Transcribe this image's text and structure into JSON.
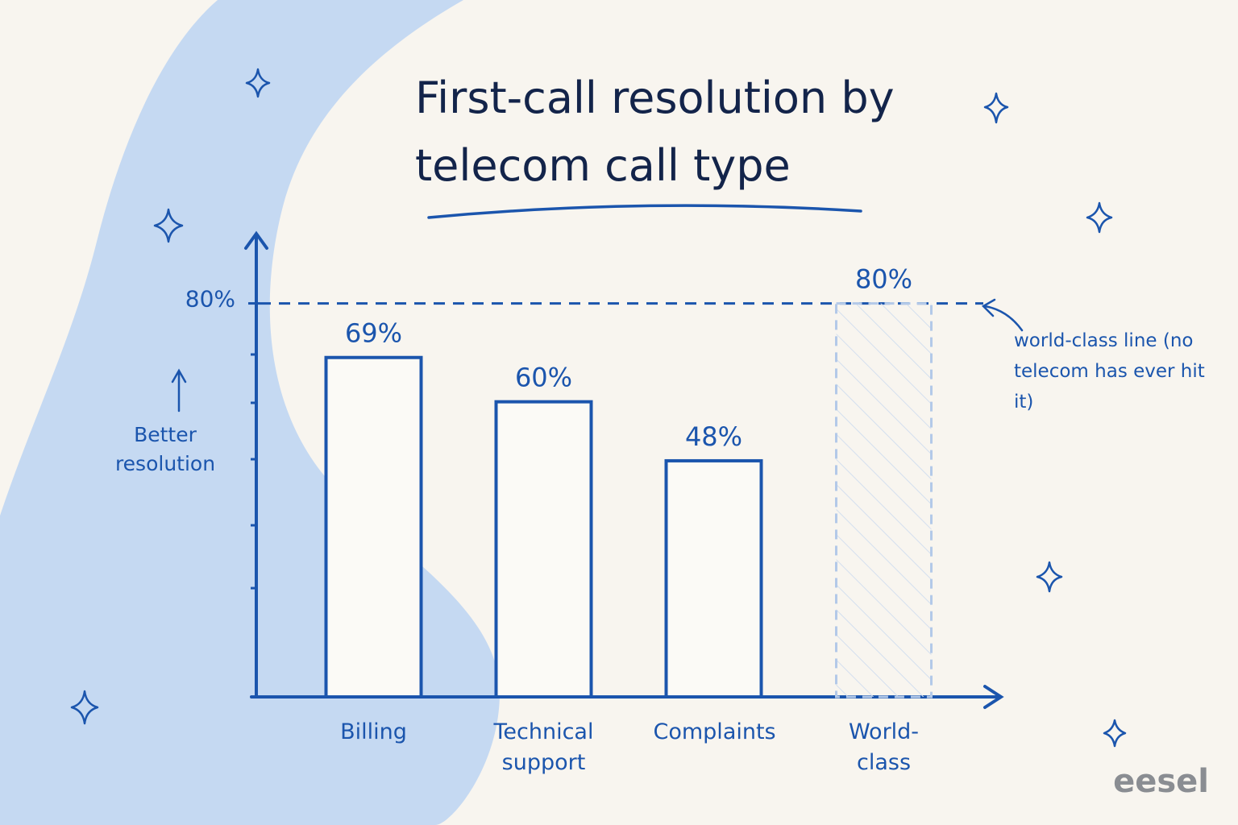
{
  "chart_data": {
    "type": "bar",
    "title": "First-call resolution by telecom call type",
    "categories": [
      "Billing",
      "Technical support",
      "Complaints",
      "World-class"
    ],
    "values": [
      69,
      60,
      48,
      80
    ],
    "value_labels": [
      "69%",
      "60%",
      "48%",
      "80%"
    ],
    "colors": [
      "#1b55ad",
      "#1b55ad",
      "#1b55ad",
      "#b3c9e8"
    ],
    "dashed": [
      false,
      false,
      false,
      true
    ],
    "ylim": [
      0,
      95
    ],
    "yticks": [
      {
        "value": 80,
        "label": "80%"
      }
    ],
    "y_axis_label": "Better resolution",
    "reference_line": {
      "value": 80,
      "annotation": "world-class line (no telecom has ever hit it)"
    },
    "brand": "eesel"
  }
}
